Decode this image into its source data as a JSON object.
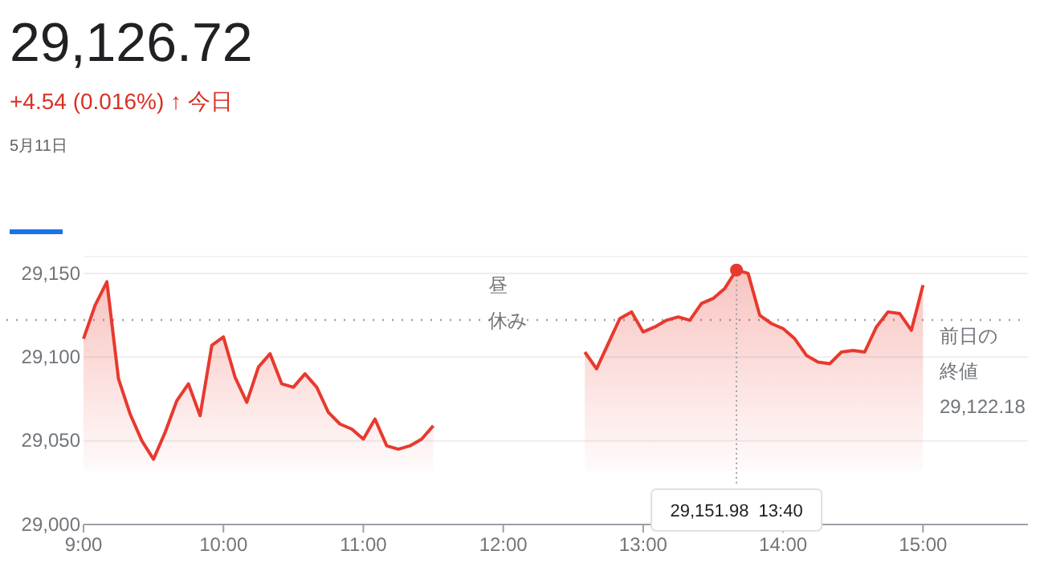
{
  "chart_data": {
    "type": "area",
    "title": "29,126.72",
    "subtitle": "+4.54 (0.016%) ↑ 今日",
    "annotations": [
      "5月11日",
      "昼休み",
      {
        "text": "29,151.98  13:40",
        "x": 13.667,
        "y": 29151.98
      }
    ],
    "series": [
      {
        "color": "#e8392e",
        "x": [
          9,
          9.083,
          9.167,
          9.25,
          9.333,
          9.417,
          9.5,
          9.583,
          9.667,
          9.75,
          9.833,
          9.917,
          10,
          10.083,
          10.167,
          10.25,
          10.333,
          10.417,
          10.5,
          10.583,
          10.667,
          10.75,
          10.833,
          10.917,
          11,
          11.083,
          11.167,
          11.25,
          11.333,
          11.417,
          11.5
        ],
        "values": [
          29111,
          29131,
          29145,
          29087,
          29066,
          29050,
          29039,
          29055,
          29074,
          29084,
          29065,
          29107,
          29112,
          29088,
          29073,
          29094,
          29102,
          29084,
          29082,
          29090,
          29082,
          29067,
          29060,
          29057,
          29051,
          29063,
          29047,
          29045,
          29047,
          29051,
          29059
        ]
      },
      {
        "color": "#e8392e",
        "x": [
          12.583,
          12.667,
          12.833,
          12.917,
          13,
          13.083,
          13.167,
          13.25,
          13.333,
          13.417,
          13.5,
          13.583,
          13.667,
          13.75,
          13.833,
          13.917,
          14,
          14.083,
          14.167,
          14.25,
          14.333,
          14.417,
          14.5,
          14.583,
          14.667,
          14.75,
          14.833,
          14.917,
          15
        ],
        "values": [
          29103,
          29093,
          29123,
          29127,
          29115,
          29118,
          29122,
          29124,
          29122,
          29132,
          29135,
          29141,
          29152,
          29150,
          29125,
          29120,
          29117,
          29111,
          29101,
          29097,
          29096,
          29103,
          29104,
          29103,
          29118,
          29127,
          29126,
          29116,
          29143
        ]
      }
    ],
    "xlim": [
      9,
      15.75
    ],
    "xticks": [
      {
        "value": 9,
        "label": "9:00"
      },
      {
        "value": 10,
        "label": "10:00"
      },
      {
        "value": 11,
        "label": "11:00"
      },
      {
        "value": 12,
        "label": "12:00"
      },
      {
        "value": 13,
        "label": "13:00"
      },
      {
        "value": 14,
        "label": "14:00"
      },
      {
        "value": 15,
        "label": "15:00"
      }
    ],
    "ylim": [
      29000,
      29160
    ],
    "yticks": [
      {
        "value": 29000,
        "label": "29,000"
      },
      {
        "value": 29050,
        "label": "29,050"
      },
      {
        "value": 29100,
        "label": "29,100"
      },
      {
        "value": 29150,
        "label": "29,150"
      }
    ],
    "grid": "y",
    "ref_lines": [
      {
        "axis": "y",
        "value": 29122.18,
        "label": "前日の終値 29,122.18",
        "color": "#9e9e9e",
        "line_style": "dotted"
      }
    ]
  }
}
